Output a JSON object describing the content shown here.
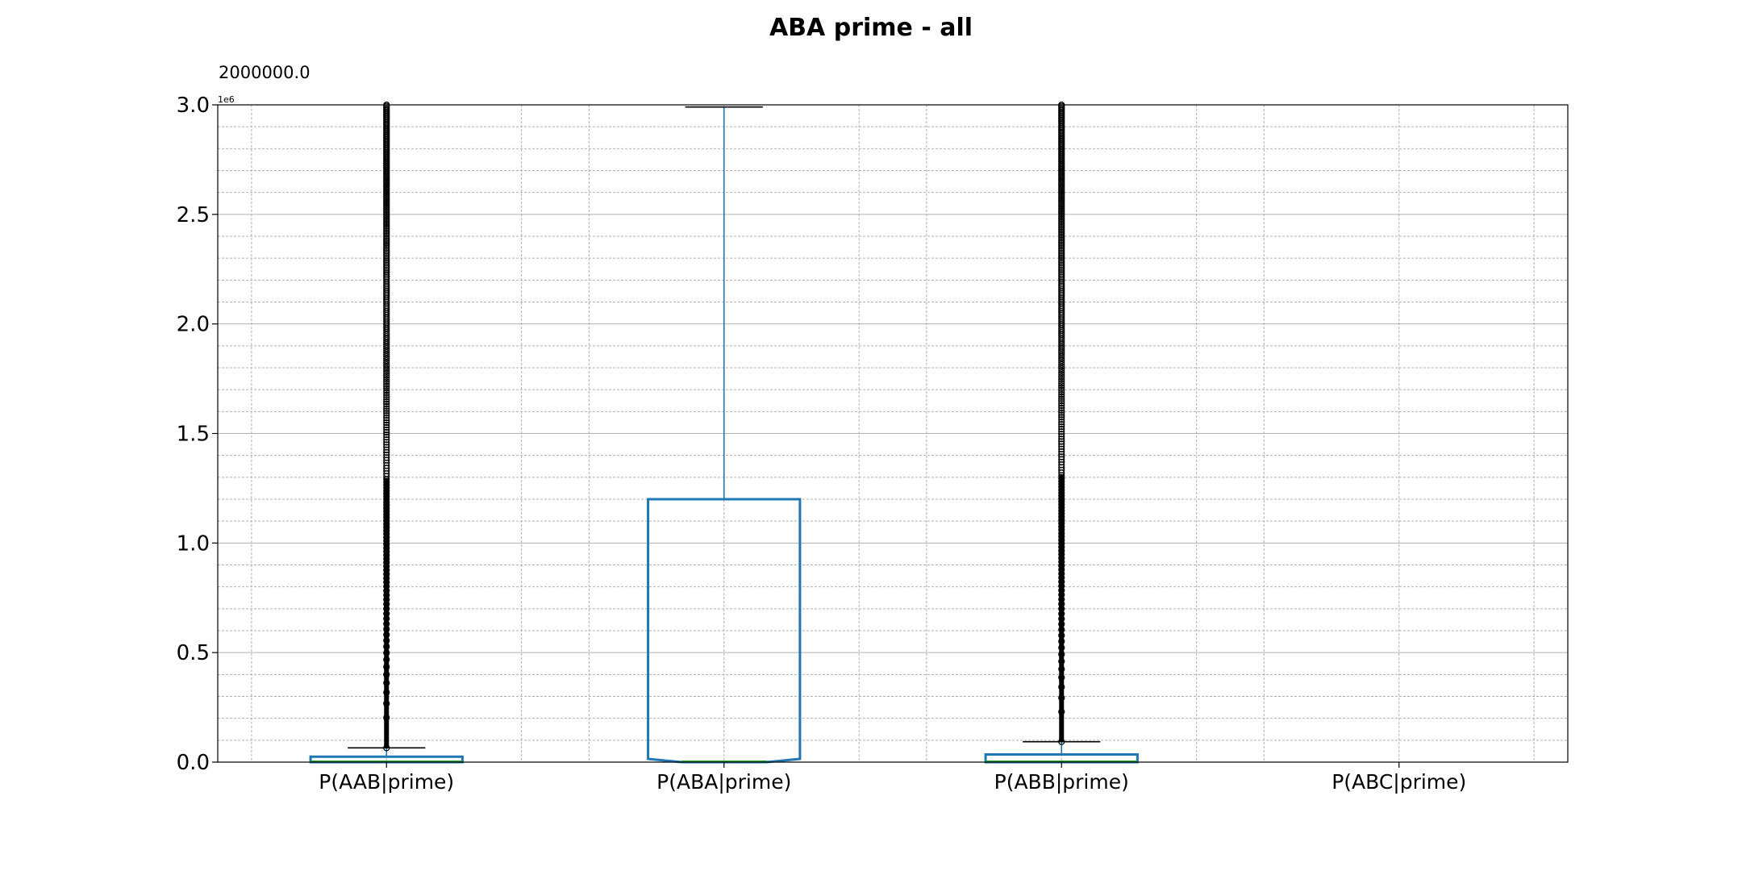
{
  "chart_data": {
    "type": "boxplot",
    "title": "ABA prime - all",
    "top_annotation": "2000000.0",
    "offset_text": "1e6",
    "xlabel": "",
    "ylabel": "",
    "ylim": [
      0,
      3000000
    ],
    "y_ticks": [
      0,
      500000,
      1000000,
      1500000,
      2000000,
      2500000,
      3000000
    ],
    "y_tick_labels": [
      "0.0",
      "0.5",
      "1.0",
      "1.5",
      "2.0",
      "2.5",
      "3.0"
    ],
    "y_minor_step": 100000,
    "x_minor_positions": [
      0.6,
      1.4,
      1.6,
      2.4,
      2.6,
      3.4,
      3.6,
      4.4
    ],
    "grid": true,
    "notched": true,
    "categories": [
      "P(AAB|prime)",
      "P(ABA|prime)",
      "P(ABB|prime)",
      "P(ABC|prime)"
    ],
    "boxes": [
      {
        "q1": 0,
        "median": 0,
        "q3": 25000,
        "whisker_low": 0,
        "whisker_high": 65000,
        "fliers_from": 65000,
        "fliers_to": 3000000,
        "has_box": true
      },
      {
        "q1": 0,
        "median": 0,
        "q3": 1200000,
        "whisker_low": 0,
        "whisker_high": 2990000,
        "fliers_from": null,
        "fliers_to": null,
        "has_box": true
      },
      {
        "q1": 0,
        "median": 0,
        "q3": 35000,
        "whisker_low": 0,
        "whisker_high": 93000,
        "fliers_from": 93000,
        "fliers_to": 3000000,
        "has_box": true
      },
      {
        "q1": 0,
        "median": 0,
        "q3": 0,
        "whisker_low": 0,
        "whisker_high": 0,
        "fliers_from": null,
        "fliers_to": null,
        "has_box": false
      }
    ],
    "colors": {
      "box": "#1f77b4",
      "median": "#2ca02c",
      "whisker": "#1f77b4",
      "cap": "#000000",
      "grid": "#b0b0b0",
      "flier": "#000000"
    }
  }
}
